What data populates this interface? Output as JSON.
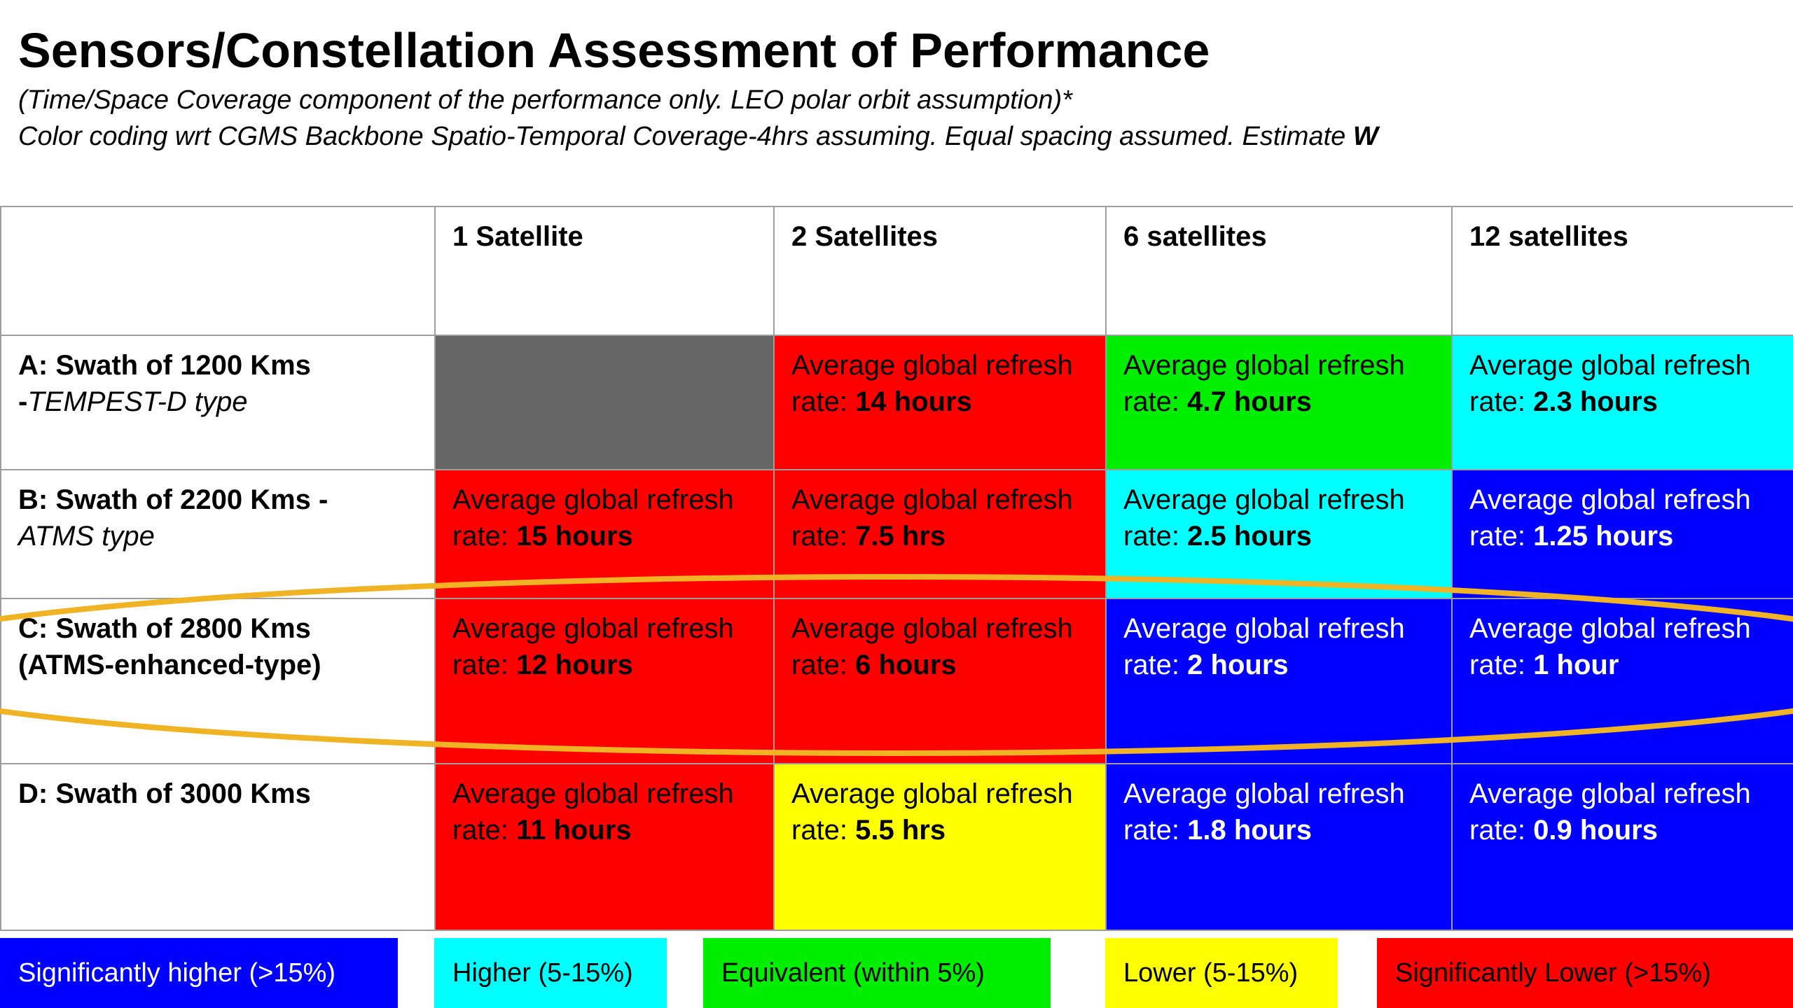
{
  "title": "Sensors/Constellation Assessment of Performance",
  "subtitle_line1": "(Time/Space Coverage component of the performance only. LEO polar orbit assumption)*",
  "subtitle_line2": "Color coding wrt CGMS Backbone Spatio-Temporal Coverage-4hrs assuming. Equal spacing assumed. Estimate ",
  "subtitle_line2_bold": "W",
  "columns": [
    "1 Satellite",
    "2 Satellites",
    "6 satellites",
    "12 satellites"
  ],
  "cell_prefix": "Average global refresh rate: ",
  "rows": [
    {
      "label_bold": "A: Swath of 1200 Kms",
      "label_line2_bold": "-",
      "label_line2_italic": "TEMPEST-D type",
      "cells": [
        {
          "color": "#666666",
          "value": ""
        },
        {
          "color": "#ff0000",
          "value": "14 hours"
        },
        {
          "color": "#00ee00",
          "value": "4.7 hours"
        },
        {
          "color": "#00ffff",
          "value": "2.3  hours"
        }
      ]
    },
    {
      "label_bold": "B: Swath of 2200 Kms -",
      "label_line2_bold": "",
      "label_line2_italic": "ATMS type",
      "cells": [
        {
          "color": "#ff0000",
          "value": "15 hours"
        },
        {
          "color": "#ff0000",
          "value": "7.5 hrs"
        },
        {
          "color": "#00ffff",
          "value": "2.5 hours"
        },
        {
          "color": "#0000ff",
          "value": "1.25 hours"
        }
      ]
    },
    {
      "label_bold": "C: Swath of 2800 Kms",
      "label_line2_bold": "(ATMS-enhanced-type)",
      "label_line2_italic": "",
      "cells": [
        {
          "color": "#ff0000",
          "value": "12 hours"
        },
        {
          "color": "#ff0000",
          "value": "6 hours"
        },
        {
          "color": "#0000ff",
          "value": "2 hours"
        },
        {
          "color": "#0000ff",
          "value": "1 hour"
        }
      ]
    },
    {
      "label_bold": "D: Swath of 3000 Kms",
      "label_line2_bold": "",
      "label_line2_italic": "",
      "cells": [
        {
          "color": "#ff0000",
          "value": "11 hours"
        },
        {
          "color": "#ffff00",
          "value": "5.5 hrs"
        },
        {
          "color": "#0000ff",
          "value": "1.8 hours"
        },
        {
          "color": "#0000ff",
          "value": "0.9 hours"
        }
      ]
    }
  ],
  "legend": [
    {
      "label": "Significantly higher (>15%)",
      "color": "#0000ff"
    },
    {
      "label": "Higher (5-15%)",
      "color": "#00ffff"
    },
    {
      "label": "Equivalent (within 5%)",
      "color": "#00ee00"
    },
    {
      "label": "Lower (5-15%)",
      "color": "#ffff00"
    },
    {
      "label": "Significantly Lower (>15%)",
      "color": "#ff0000"
    }
  ],
  "highlight_color": "#f0b323"
}
